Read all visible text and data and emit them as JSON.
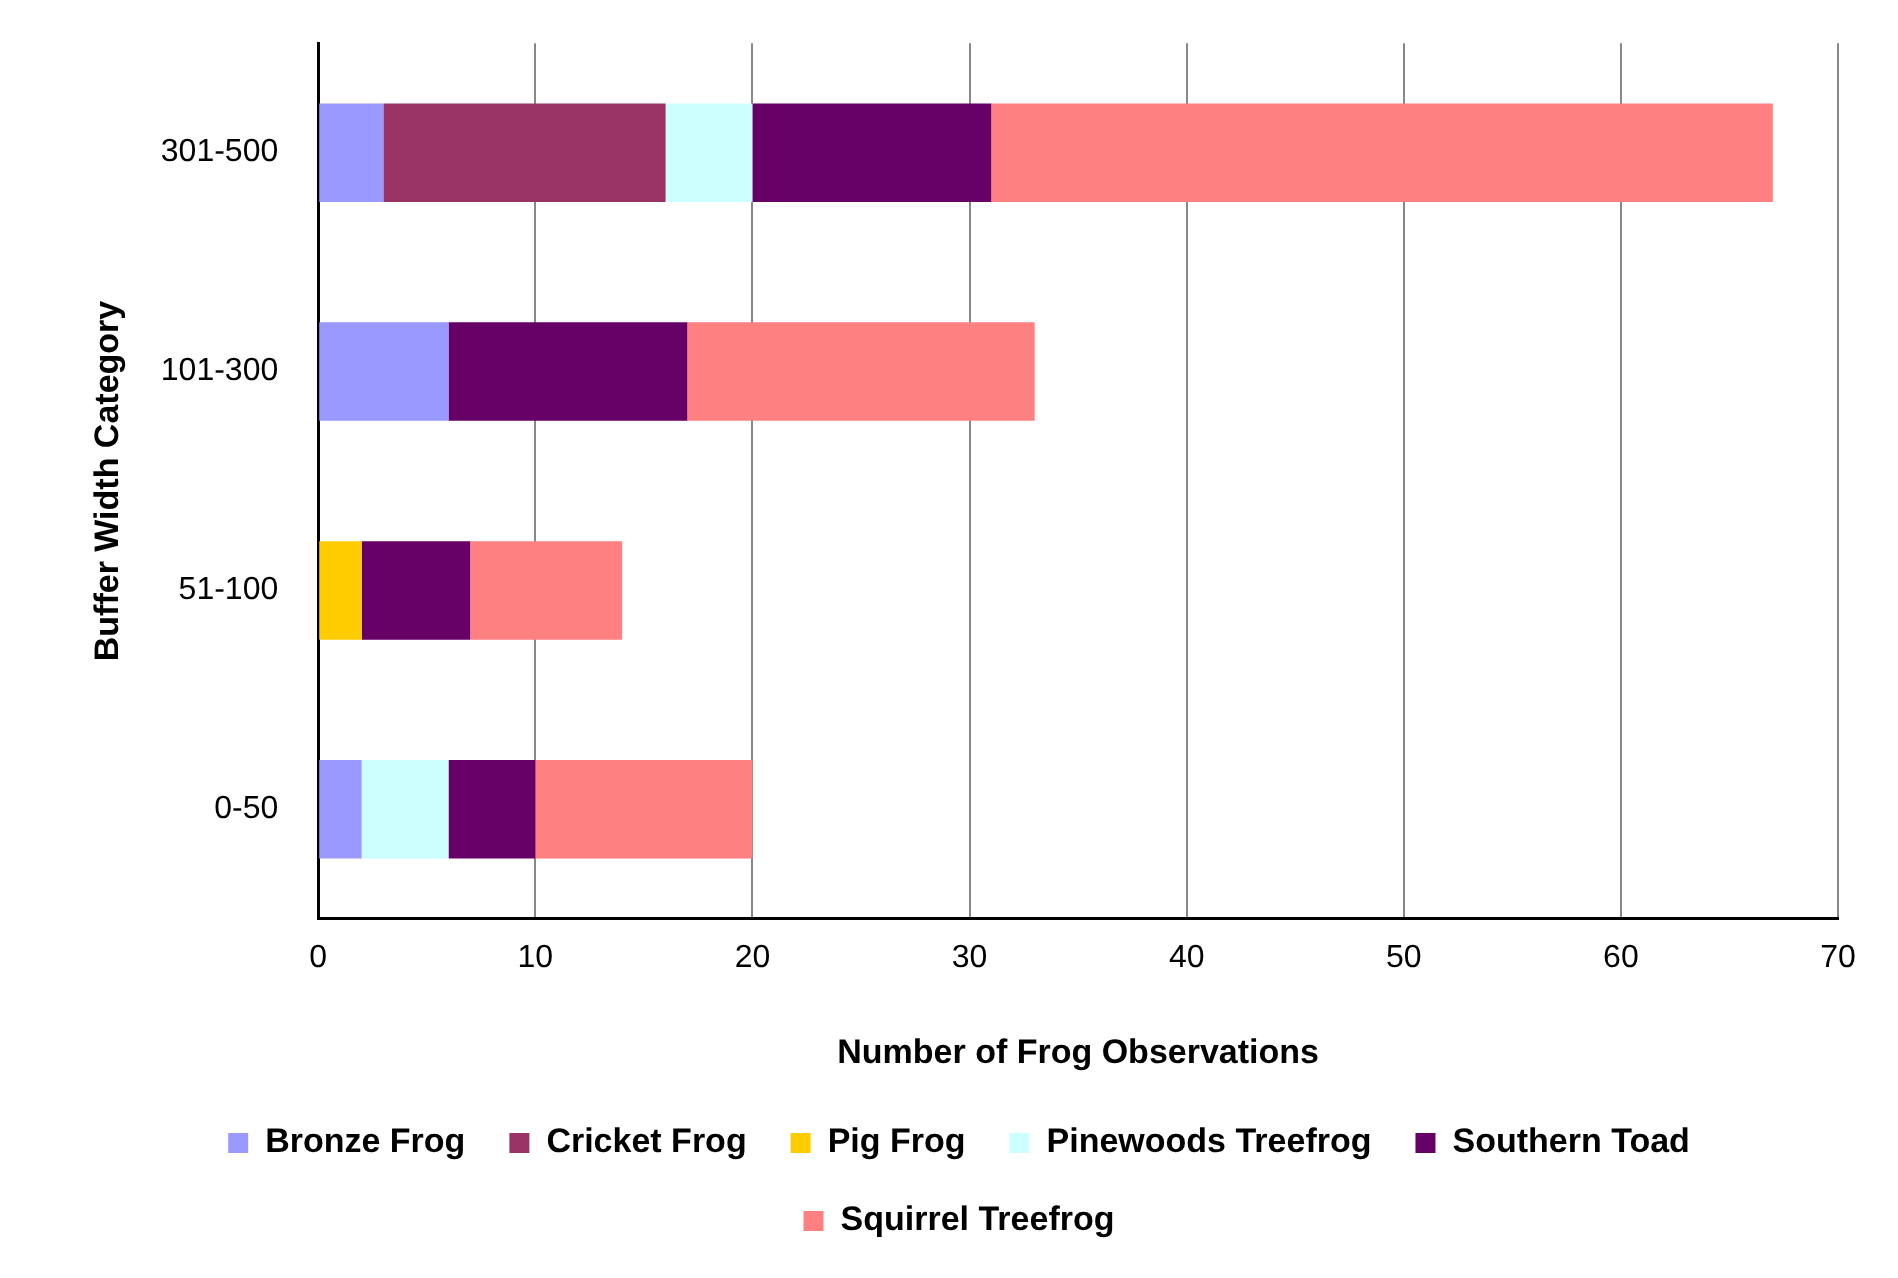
{
  "chart_data": {
    "type": "bar",
    "orientation": "horizontal",
    "stacked": true,
    "xlabel": "Number of Frog Observations",
    "ylabel": "Buffer Width Category",
    "categories": [
      "301-500",
      "101-300",
      "51-100",
      "0-50"
    ],
    "series": [
      {
        "name": "Bronze Frog",
        "color": "#9999ff",
        "values": [
          3,
          6,
          null,
          2
        ]
      },
      {
        "name": "Cricket Frog",
        "color": "#993366",
        "values": [
          13,
          null,
          null,
          null
        ]
      },
      {
        "name": "Pig Frog",
        "color": "#ffcc00",
        "values": [
          null,
          null,
          2,
          null
        ]
      },
      {
        "name": "Pinewoods Treefrog",
        "color": "#ccffff",
        "values": [
          4,
          null,
          null,
          4
        ]
      },
      {
        "name": "Southern Toad",
        "color": "#660066",
        "values": [
          11,
          11,
          5,
          4
        ]
      },
      {
        "name": "Squirrel Treefrog",
        "color": "#ff8080",
        "values": [
          36,
          16,
          7,
          10
        ]
      }
    ],
    "xlim": [
      0,
      70
    ],
    "xticks": [
      0,
      10,
      20,
      30,
      40,
      50,
      60,
      70
    ],
    "grid": "x",
    "legend": "bottom"
  }
}
